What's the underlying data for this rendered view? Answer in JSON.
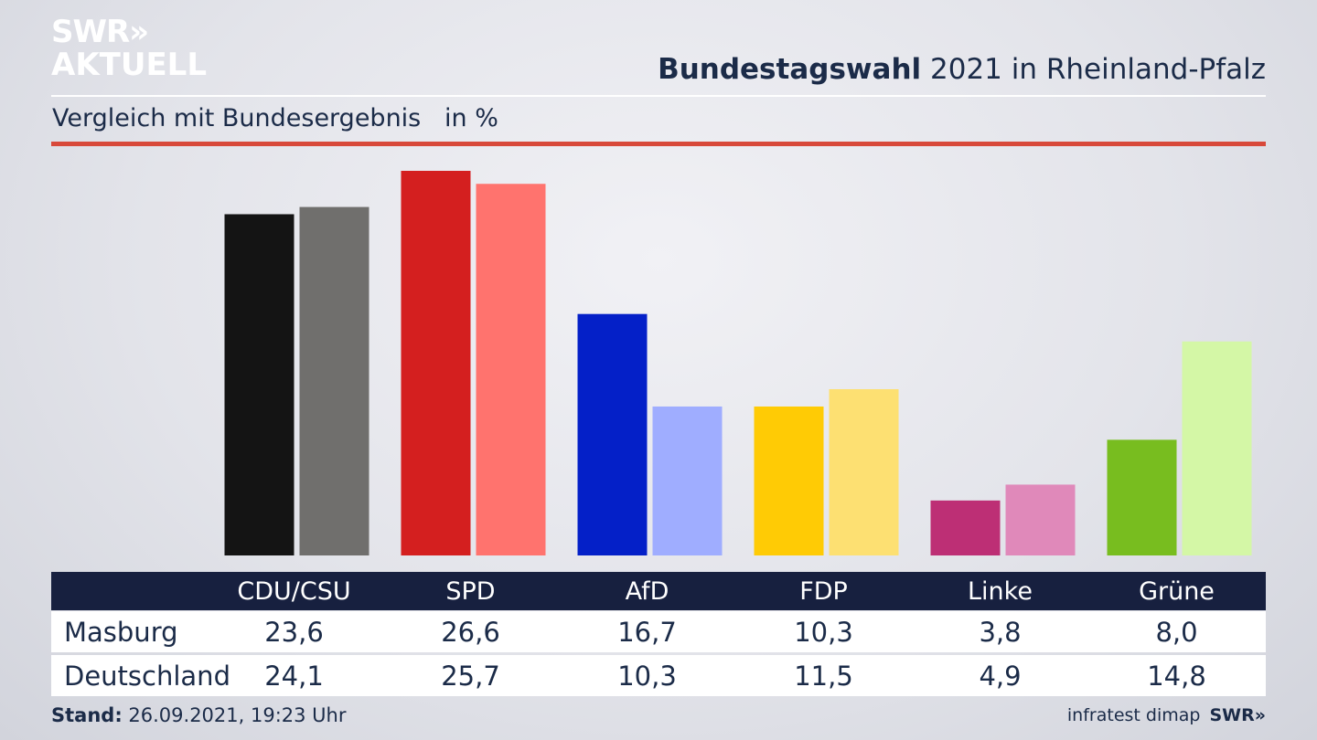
{
  "brand": {
    "line1": "SWR",
    "arrows": "»",
    "line2": "AKTUELL",
    "footer_logo": "SWR»"
  },
  "header": {
    "title_bold": "Bundestagswahl",
    "title_rest": " 2021 in Rheinland-Pfalz",
    "subtitle": "Vergleich mit Bundesergebnis",
    "unit": "in %"
  },
  "footer": {
    "stand_label": "Stand:",
    "stand_value": " 26.09.2021, 19:23 Uhr",
    "source": "infratest dimap"
  },
  "colors": {
    "masburg": [
      "#141414",
      "#d41f1f",
      "#0420c8",
      "#ffcb05",
      "#bd2f75",
      "#78bd1f"
    ],
    "deutschland": [
      "#706f6d",
      "#ff736e",
      "#9fadff",
      "#fde072",
      "#e089ba",
      "#d4f7a6"
    ]
  },
  "chart_data": {
    "type": "bar",
    "categories": [
      "CDU/CSU",
      "SPD",
      "AfD",
      "FDP",
      "Linke",
      "Grüne"
    ],
    "series": [
      {
        "name": "Masburg",
        "values": [
          23.6,
          26.6,
          16.7,
          10.3,
          3.8,
          8.0
        ],
        "labels": [
          "23,6",
          "26,6",
          "16,7",
          "10,3",
          "3,8",
          "8,0"
        ]
      },
      {
        "name": "Deutschland",
        "values": [
          24.1,
          25.7,
          10.3,
          11.5,
          4.9,
          14.8
        ],
        "labels": [
          "24,1",
          "25,7",
          "10,3",
          "11,5",
          "4,9",
          "14,8"
        ]
      }
    ],
    "ylim": [
      0,
      26.6
    ]
  }
}
